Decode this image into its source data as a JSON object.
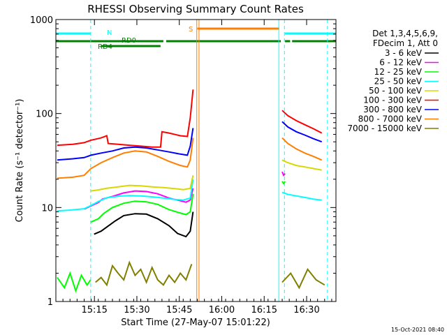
{
  "chart_data": {
    "type": "line",
    "title": "RHESSI Observing Summary Count Rates",
    "xlabel": "Start Time (27-May-07 15:01:22)",
    "ylabel": "Count Rate (s⁻¹ detector⁻¹)",
    "yscale": "log",
    "ylim": [
      1,
      1000
    ],
    "xlim_minutes": [
      0,
      99
    ],
    "x_unit": "minutes after start time",
    "x_ticks": [
      {
        "label": "15:15",
        "value": 13.63
      },
      {
        "label": "15:30",
        "value": 28.63
      },
      {
        "label": "15:45",
        "value": 43.63
      },
      {
        "label": "16:00",
        "value": 58.63
      },
      {
        "label": "16:15",
        "value": 73.63
      },
      {
        "label": "16:30",
        "value": 88.63
      }
    ],
    "y_ticks": [
      {
        "label": "1",
        "value": 1
      },
      {
        "label": "10",
        "value": 10
      },
      {
        "label": "100",
        "value": 100
      },
      {
        "label": "1000",
        "value": 1000
      }
    ],
    "legend": {
      "header": [
        "Det 1,3,4,5,6,9,",
        "FDecim 1, Att 0"
      ],
      "placement": "right"
    },
    "series": [
      {
        "name": "3 - 6 keV",
        "color": "#000000",
        "segments": [
          {
            "x": [
              13.5,
              16,
              18,
              21,
              24,
              28,
              32,
              36,
              40,
              43,
              46,
              47.5,
              48.5
            ],
            "y": [
              5.2,
              5.6,
              6.2,
              7.2,
              8.2,
              8.6,
              8.5,
              7.6,
              6.4,
              5.3,
              4.9,
              5.6,
              9.0
            ]
          }
        ]
      },
      {
        "name": "6 - 12 keV",
        "color": "#ff00ff",
        "segments": [
          {
            "x": [
              10,
              15,
              16.5,
              20,
              24,
              28,
              32,
              36,
              40,
              43,
              46,
              47.5,
              48.5
            ],
            "y": [
              9.6,
              11.3,
              12.3,
              13.1,
              14.3,
              15.0,
              14.8,
              14.0,
              12.6,
              12.0,
              11.4,
              12.0,
              16.0
            ]
          },
          {
            "x": [
              80,
              80.5,
              81
            ],
            "y": [
              24,
              22,
              23
            ]
          }
        ]
      },
      {
        "name": "12 - 25 keV",
        "color": "#00ff00",
        "segments": [
          {
            "x": [
              12.4,
              15,
              17,
              20,
              24,
              28,
              32,
              36,
              40,
              43,
              46,
              47.5,
              48.5
            ],
            "y": [
              7.0,
              7.6,
              8.7,
              10.0,
              11.1,
              11.7,
              11.5,
              10.8,
              9.5,
              8.9,
              8.4,
              9.0,
              14.0
            ]
          },
          {
            "x": [
              80,
              80.5,
              81
            ],
            "y": [
              19,
              18,
              19
            ]
          }
        ]
      },
      {
        "name": "25 - 50 keV",
        "color": "#00ffff",
        "segments": [
          {
            "x": [
              0.5,
              5,
              10,
              12.4,
              15,
              18,
              22,
              26,
              30,
              34,
              38,
              42,
              45,
              47.5,
              48.5
            ],
            "y": [
              9.2,
              9.4,
              9.7,
              10.5,
              11.6,
              12.7,
              13.2,
              13.4,
              13.3,
              13.0,
              12.6,
              12.2,
              12.0,
              12.6,
              20.0
            ]
          },
          {
            "x": [
              80,
              82,
              85,
              88,
              91,
              94
            ],
            "y": [
              14.5,
              13.8,
              13.3,
              12.8,
              12.3,
              12.0
            ]
          }
        ]
      },
      {
        "name": "50 - 100 keV",
        "color": "#d8d800",
        "segments": [
          {
            "x": [
              12.4,
              15,
              18,
              22,
              26,
              30,
              34,
              38,
              42,
              45,
              47.5,
              48.5
            ],
            "y": [
              15.0,
              15.4,
              16.0,
              16.6,
              17.2,
              17.0,
              16.6,
              16.3,
              15.9,
              15.5,
              16.0,
              22.0
            ]
          },
          {
            "x": [
              80,
              82,
              85,
              88,
              91,
              94
            ],
            "y": [
              32,
              30,
              28,
              27,
              26,
              25
            ]
          }
        ]
      },
      {
        "name": "100 - 300 keV",
        "color": "#ff0000",
        "segments": [
          {
            "x": [
              0.5,
              6,
              10,
              12.4,
              16,
              18,
              18.5,
              22,
              26,
              30,
              34,
              37,
              37.5,
              40,
              44,
              46.5,
              47.5,
              48.5
            ],
            "y": [
              46,
              47,
              49,
              52,
              55,
              58,
              48,
              47,
              46,
              45,
              44,
              44,
              64,
              62,
              58,
              57,
              90,
              180
            ]
          },
          {
            "x": [
              80,
              82,
              85,
              88,
              91,
              94
            ],
            "y": [
              108,
              95,
              84,
              76,
              69,
              62
            ]
          }
        ]
      },
      {
        "name": "300 - 800 keV",
        "color": "#0000ff",
        "segments": [
          {
            "x": [
              0.5,
              6,
              10,
              12.4,
              16,
              20,
              24,
              28,
              32,
              36,
              40,
              44,
              46.5,
              47.5,
              48.5
            ],
            "y": [
              32,
              33,
              34,
              36,
              38,
              40,
              43,
              44,
              43,
              41,
              39,
              37,
              36,
              45,
              70
            ]
          },
          {
            "x": [
              80,
              82,
              85,
              88,
              91,
              94
            ],
            "y": [
              82,
              72,
              64,
              59,
              54,
              50
            ]
          }
        ]
      },
      {
        "name": "800 - 7000 keV",
        "color": "#ff7f00",
        "segments": [
          {
            "x": [
              0.5,
              6,
              10,
              12.4,
              16,
              20,
              24,
              28,
              32,
              36,
              40,
              44,
              46.5,
              47.5,
              48.5
            ],
            "y": [
              20.5,
              21,
              22,
              26,
              30,
              34,
              38,
              40,
              39,
              35,
              31,
              28,
              27,
              32,
              55
            ]
          },
          {
            "x": [
              80,
              82,
              85,
              88,
              91,
              94
            ],
            "y": [
              55,
              48,
              42,
              38,
              35,
              32
            ]
          }
        ]
      },
      {
        "name": "7000 - 15000 keV",
        "color": "#7f7f00",
        "segments": [
          {
            "x": [
              14,
              16,
              18,
              20,
              22,
              24,
              26,
              28,
              30,
              32,
              34,
              36,
              38,
              40,
              42,
              44,
              46,
              48
            ],
            "y": [
              1.6,
              1.8,
              1.5,
              2.4,
              2.0,
              1.7,
              2.6,
              1.9,
              2.2,
              1.6,
              2.3,
              1.7,
              1.5,
              1.9,
              1.6,
              2.0,
              1.7,
              2.5
            ]
          },
          {
            "x": [
              80,
              83,
              86,
              89,
              92,
              95
            ],
            "y": [
              1.6,
              2.0,
              1.4,
              2.2,
              1.7,
              1.5
            ]
          }
        ]
      }
    ],
    "attenuator_series": [
      {
        "note": "green near-floor counts",
        "color": "#00ff00",
        "x": [
          0.5,
          3,
          5,
          7,
          9,
          11,
          12.3
        ],
        "y": [
          1.8,
          1.4,
          2.0,
          1.3,
          1.9,
          1.5,
          1.7
        ]
      }
    ],
    "annotations": {
      "top_labels": [
        {
          "text": "N",
          "color": "#00ffff"
        },
        {
          "text": "S",
          "color": "#ff7f00"
        }
      ],
      "rd_labels": [
        "RD0",
        "RD4"
      ]
    },
    "state_bars": [
      {
        "label": "N",
        "color": "#00ffff",
        "intervals": [
          [
            0,
            12.3
          ],
          [
            81,
            99
          ]
        ]
      },
      {
        "label": "S",
        "color": "#ff7f00",
        "intervals": [
          [
            50,
            79
          ]
        ]
      },
      {
        "label": "RD0",
        "color": "#008000",
        "intervals": [
          [
            0,
            38
          ],
          [
            39,
            79.5
          ],
          [
            81,
            82.8
          ],
          [
            83.5,
            99
          ]
        ]
      },
      {
        "label": "RD4",
        "color": "#008000",
        "intervals": [
          [
            16,
            37
          ]
        ]
      }
    ],
    "vertical_lines": [
      {
        "color": "#00ffff",
        "style": "dashed",
        "x": [
          12.3,
          80.8,
          96
        ]
      },
      {
        "color": "#00ffff",
        "style": "solid",
        "x": [
          0,
          78.8
        ]
      },
      {
        "color": "#ff7f00",
        "style": "solid",
        "x": [
          49.8,
          50.6
        ]
      }
    ]
  },
  "timestamp": "15-Oct-2021 08:40"
}
